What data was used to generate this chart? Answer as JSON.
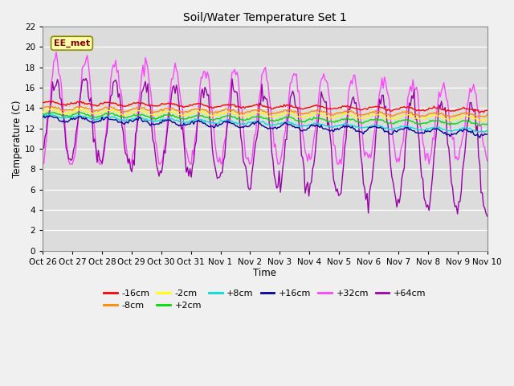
{
  "title": "Soil/Water Temperature Set 1",
  "xlabel": "Time",
  "ylabel": "Temperature (C)",
  "ylim": [
    0,
    22
  ],
  "yticks": [
    0,
    2,
    4,
    6,
    8,
    10,
    12,
    14,
    16,
    18,
    20,
    22
  ],
  "x_labels": [
    "Oct 26",
    "Oct 27",
    "Oct 28",
    "Oct 29",
    "Oct 30",
    "Oct 31",
    "Nov 1",
    "Nov 2",
    "Nov 3",
    "Nov 4",
    "Nov 5",
    "Nov 6",
    "Nov 7",
    "Nov 8",
    "Nov 9",
    "Nov 10"
  ],
  "n_days": 15,
  "annotation_text": "EE_met",
  "series_colors": {
    "-16cm": "#ff0000",
    "-8cm": "#ff8800",
    "-2cm": "#ffff00",
    "+2cm": "#00dd00",
    "+8cm": "#00dddd",
    "+16cm": "#000099",
    "+32cm": "#ff44ff",
    "+64cm": "#9900aa"
  },
  "background_color": "#e8e8e8",
  "plot_bg_color": "#dcdcdc",
  "grid_color": "#ffffff"
}
